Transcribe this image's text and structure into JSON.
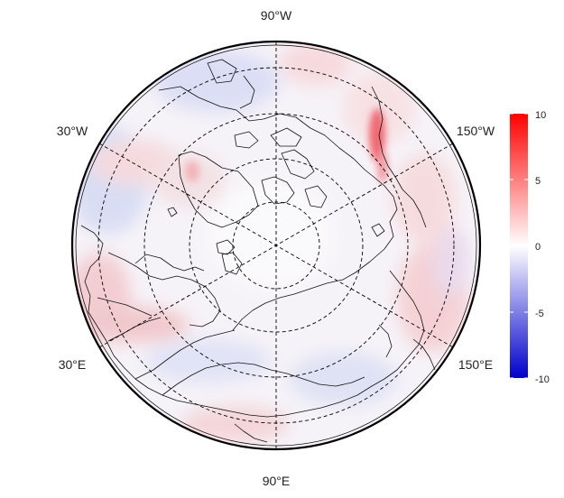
{
  "map": {
    "projection": "north-polar-stereographic",
    "longitude_labels": {
      "top": "90°W",
      "bottom": "90°E",
      "upper_left": "30°W",
      "upper_right": "150°W",
      "lower_left": "30°E",
      "lower_right": "150°E"
    },
    "graticule": {
      "latitude_circles": 4,
      "meridians": 6,
      "style": "dashed"
    }
  },
  "colorbar": {
    "min": -10,
    "max": 10,
    "ticks": [
      "10",
      "5",
      "0",
      "-5",
      "-10"
    ],
    "colors": {
      "low": "#0000cc",
      "mid": "#ffffff",
      "high": "#ff0000"
    }
  }
}
